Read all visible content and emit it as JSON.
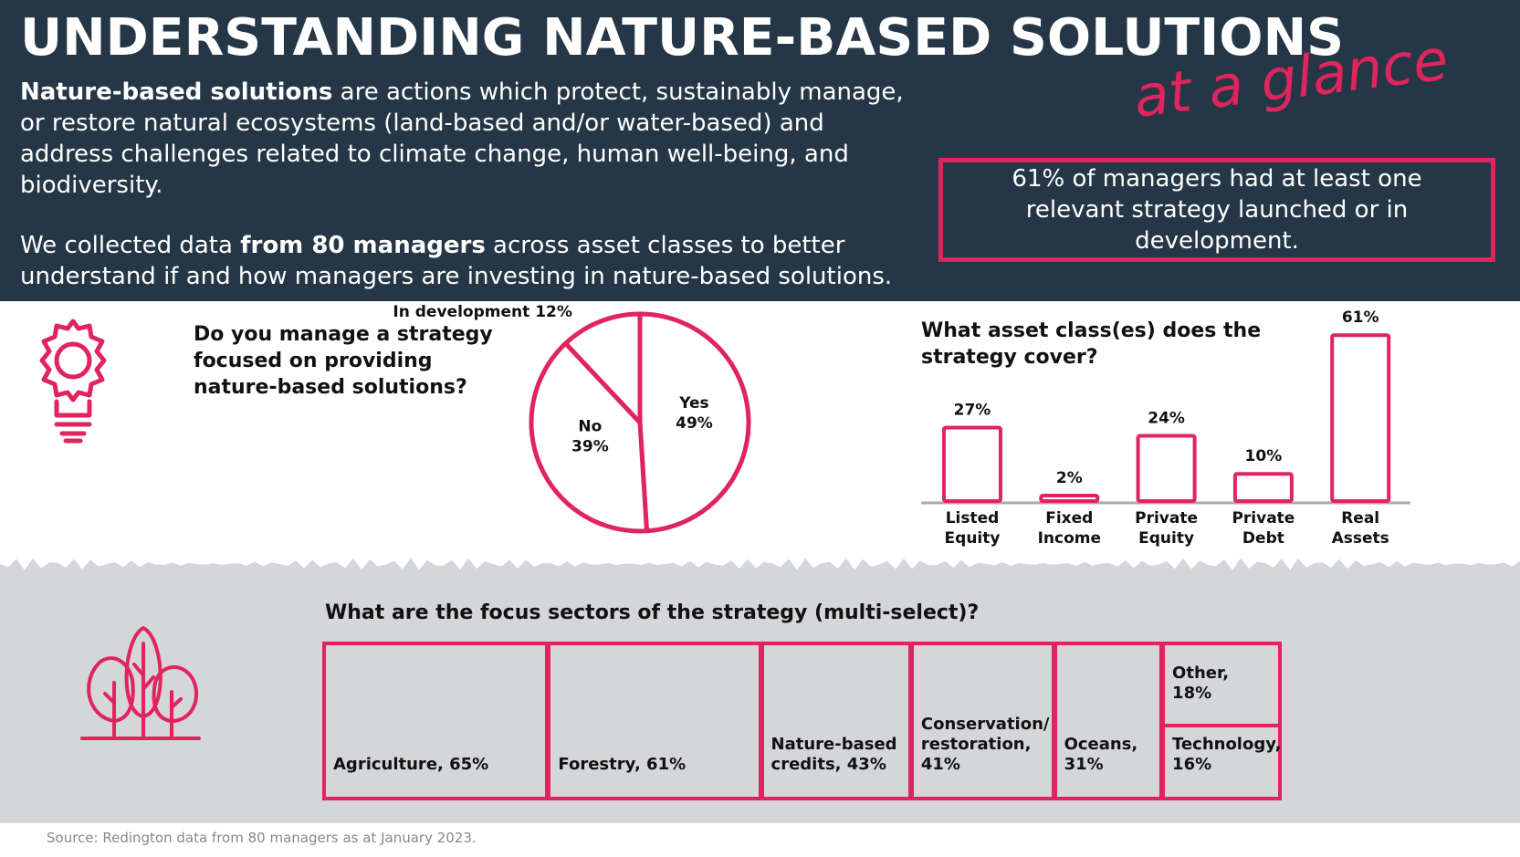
{
  "header": {
    "title": "UNDERSTANDING NATURE-BASED SOLUTIONS",
    "tagline": "at a glance",
    "intro": [
      {
        "runs": [
          {
            "text": "Nature-based solutions",
            "bold": true
          },
          {
            "text": " are actions which protect, sustainably manage, or restore natural ecosystems (land-based and/or water-based) and address challenges related to climate change, human well-being, and biodiversity.",
            "bold": false
          }
        ]
      },
      {
        "runs": [
          {
            "text": "We collected data ",
            "bold": false
          },
          {
            "text": "from 80 managers",
            "bold": true
          },
          {
            "text": " across asset classes to better understand if and how managers are investing in nature-based solutions.",
            "bold": false
          }
        ]
      }
    ],
    "callout": "61% of managers had at least one relevant strategy launched or in development."
  },
  "chart_data": [
    {
      "type": "pie",
      "title": "Do you manage a strategy focused on providing nature-based solutions?",
      "categories": [
        "Yes",
        "No",
        "In development"
      ],
      "values": [
        49,
        39,
        12
      ],
      "value_labels": [
        "49%",
        "39%",
        "12%"
      ],
      "color": "#e0245e"
    },
    {
      "type": "bar",
      "title": "What asset class(es) does the strategy cover?",
      "categories": [
        "Listed Equity",
        "Fixed Income",
        "Private Equity",
        "Private Debt",
        "Real Assets"
      ],
      "values": [
        27,
        2,
        24,
        10,
        61
      ],
      "value_labels": [
        "27%",
        "2%",
        "24%",
        "10%",
        "61%"
      ],
      "color": "#e0245e"
    },
    {
      "type": "treemap",
      "title": "What are the focus sectors of the strategy (multi-select)?",
      "values": [
        65,
        61,
        43,
        41,
        31,
        18,
        16
      ],
      "value_labels": [
        "Agriculture, 65%",
        "Forestry, 61%",
        "Nature-based credits, 43%",
        "Conservation/ restoration, 41%",
        "Oceans, 31%",
        "Other, 18%",
        "Technology, 16%"
      ],
      "color": "#e0245e"
    }
  ],
  "source": "Source: Redington data from 80 managers as at January 2023."
}
